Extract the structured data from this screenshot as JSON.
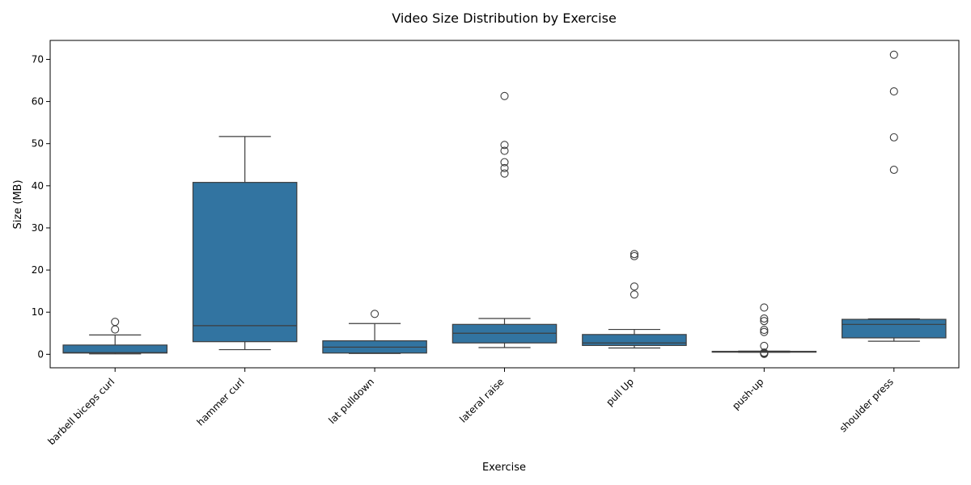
{
  "chart_data": {
    "type": "box",
    "title": "Video Size Distribution by Exercise",
    "xlabel": "Exercise",
    "ylabel": "Size (MB)",
    "ylim": [
      -3.2,
      74.5
    ],
    "yticks": [
      0,
      10,
      20,
      30,
      40,
      50,
      60,
      70
    ],
    "grid": false,
    "box_color": "#3274a1",
    "line_color": "#3d3d3d",
    "categories": [
      "barbell biceps curl",
      "hammer curl",
      "lat pulldown",
      "lateral raise",
      "pull Up",
      "push-up",
      "shoulder press"
    ],
    "boxes": [
      {
        "whislo": 0.1,
        "q1": 0.3,
        "med": 0.4,
        "q3": 2.2,
        "whishi": 4.6,
        "fliers": [
          5.9,
          7.7
        ]
      },
      {
        "whislo": 1.1,
        "q1": 3.0,
        "med": 6.8,
        "q3": 40.8,
        "whishi": 51.7,
        "fliers": []
      },
      {
        "whislo": 0.2,
        "q1": 0.3,
        "med": 1.7,
        "q3": 3.2,
        "whishi": 7.3,
        "fliers": [
          9.6
        ]
      },
      {
        "whislo": 1.6,
        "q1": 2.7,
        "med": 5.0,
        "q3": 7.1,
        "whishi": 8.5,
        "fliers": [
          42.9,
          44.2,
          45.6,
          48.3,
          49.7,
          61.3
        ]
      },
      {
        "whislo": 1.5,
        "q1": 2.1,
        "med": 2.7,
        "q3": 4.7,
        "whishi": 5.9,
        "fliers": [
          14.2,
          16.1,
          23.3,
          23.8
        ]
      },
      {
        "whislo": 0.5,
        "q1": 0.55,
        "med": 0.6,
        "q3": 0.7,
        "whishi": 0.75,
        "fliers": [
          0.1,
          0.2,
          0.3,
          0.4,
          2.0,
          5.3,
          5.8,
          7.9,
          8.5,
          11.1
        ]
      },
      {
        "whislo": 3.1,
        "q1": 3.9,
        "med": 7.1,
        "q3": 8.3,
        "whishi": 8.4,
        "fliers": [
          43.8,
          51.5,
          62.4,
          71.1
        ]
      }
    ]
  }
}
